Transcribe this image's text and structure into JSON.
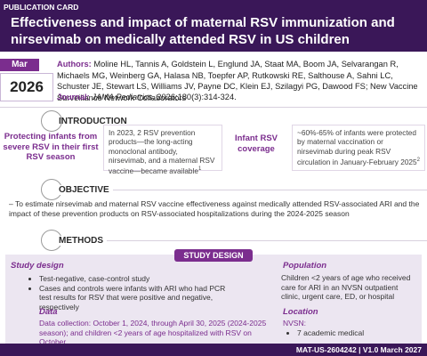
{
  "header": {
    "label": "PUBLICATION CARD",
    "title": "Effectiveness and impact of maternal RSV immunization and nirsevimab on medically attended RSV in US children"
  },
  "date": {
    "month": "Mar",
    "year": "2026"
  },
  "authors": {
    "label": "Authors:",
    "text": "Moline HL, Tannis A, Goldstein L, Englund JA, Staat MA, Boom JA, Selvarangan R, Michaels MG, Weinberg GA, Halasa NB, Toepfer AP, Rutkowski RE, Salthouse A, Sahni LC, Schuster JE, Stewart LS, Williams JV, Payne DC, Klein EJ, Szilagyi PG, Dawood FS; New Vaccine Surveillance Network Collaborators"
  },
  "journal": {
    "label": "Journal:",
    "name": "JAMA Pediatrics",
    "citation": ". 2026;180(3):314-324."
  },
  "introduction": {
    "heading": "INTRODUCTION",
    "left_callout": "Protecting infants from severe RSV in their first RSV season",
    "left_text": "In 2023, 2 RSV prevention products—the long-acting monoclonal antibody, nirsevimab, and a maternal RSV vaccine—became available",
    "left_ref": "1",
    "right_callout": "Infant RSV coverage",
    "right_text": "~60%-65% of infants were protected by maternal vaccination or nirsevimab during peak RSV circulation in January-February 2025",
    "right_ref": "2"
  },
  "objective": {
    "heading": "OBJECTIVE",
    "text": "To estimate nirsevimab and maternal RSV vaccine effectiveness against medically attended RSV-associated ARI and the impact of these prevention products on RSV-associated hospitalizations during the 2024-2025 season"
  },
  "methods": {
    "heading": "METHODS",
    "banner": "STUDY DESIGN",
    "study_design": {
      "heading": "Study design",
      "bullets": [
        "Test-negative, case-control study",
        "Cases and controls were infants with ARI who had PCR test results for RSV that were positive and negative, respectively"
      ]
    },
    "population": {
      "heading": "Population",
      "text": "Children <2 years of age who received care for ARI in an NVSN outpatient clinic, urgent care, ED, or hospital"
    },
    "data": {
      "heading": "Data",
      "text": "Data collection: October 1, 2024, through April 30, 2025 (2024-2025 season); and children <2 years of age hospitalized with RSV on October"
    },
    "location": {
      "heading": "Location",
      "label": "NVSN:",
      "bullets": [
        "7 academic medical"
      ]
    }
  },
  "footer": {
    "text": "MAT-US-2604242 | V1.0 March 2027"
  }
}
